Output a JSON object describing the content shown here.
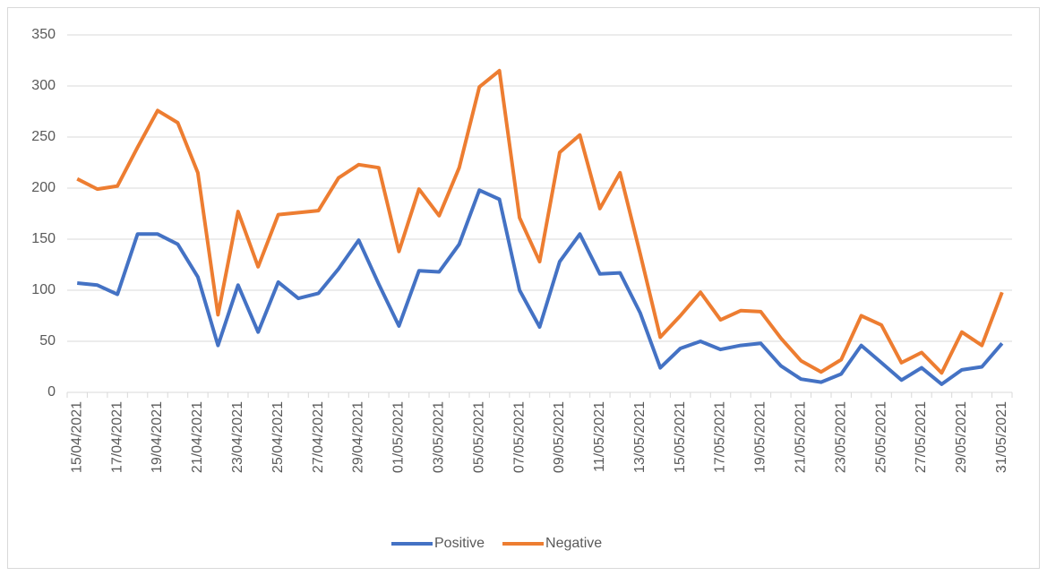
{
  "chart_data": {
    "type": "line",
    "categories": [
      "15/04/2021",
      null,
      "17/04/2021",
      null,
      "19/04/2021",
      null,
      "21/04/2021",
      null,
      "23/04/2021",
      null,
      "25/04/2021",
      null,
      "27/04/2021",
      null,
      "29/04/2021",
      null,
      "01/05/2021",
      null,
      "03/05/2021",
      null,
      "05/05/2021",
      null,
      "07/05/2021",
      null,
      "09/05/2021",
      null,
      "11/05/2021",
      null,
      "13/05/2021",
      null,
      "15/05/2021",
      null,
      "17/05/2021",
      null,
      "19/05/2021",
      null,
      "21/05/2021",
      null,
      "23/05/2021",
      null,
      "25/05/2021",
      null,
      "27/05/2021",
      null,
      "29/05/2021",
      null,
      "31/05/2021"
    ],
    "series": [
      {
        "name": "Positive",
        "color": "#4472c4",
        "values": [
          107,
          105,
          96,
          155,
          155,
          145,
          113,
          46,
          105,
          59,
          108,
          92,
          97,
          121,
          149,
          106,
          65,
          119,
          118,
          145,
          198,
          189,
          100,
          64,
          128,
          155,
          116,
          117,
          78,
          24,
          43,
          50,
          42,
          46,
          48,
          26,
          13,
          10,
          18,
          46,
          29,
          12,
          24,
          8,
          22,
          25,
          48
        ]
      },
      {
        "name": "Negative",
        "color": "#ed7d31",
        "values": [
          209,
          199,
          202,
          240,
          276,
          264,
          215,
          76,
          177,
          123,
          174,
          176,
          178,
          210,
          223,
          220,
          138,
          199,
          173,
          220,
          299,
          315,
          171,
          128,
          235,
          252,
          180,
          215,
          136,
          54,
          75,
          98,
          71,
          80,
          79,
          53,
          31,
          20,
          32,
          75,
          66,
          29,
          39,
          19,
          59,
          46,
          98
        ]
      }
    ],
    "ylim": [
      0,
      350
    ],
    "yticks": [
      0,
      50,
      100,
      150,
      200,
      250,
      300,
      350
    ],
    "grid": true,
    "legend": "bottom"
  }
}
